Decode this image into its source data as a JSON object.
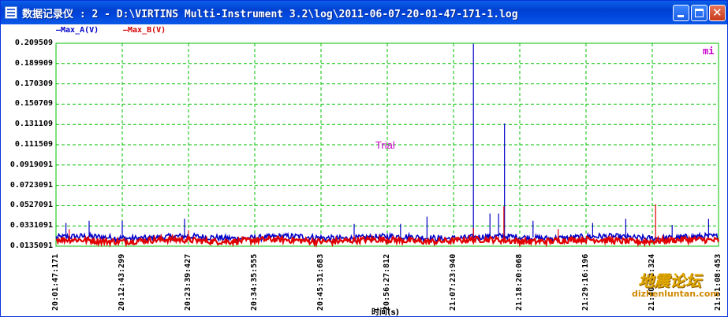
{
  "window": {
    "title": "数据记录仪 : 2 - D:\\VIRTINS Multi-Instrument 3.2\\log\\2011-06-07-20-01-47-171-1.log",
    "icon": "data-logger-icon",
    "buttons": {
      "minimize": "minimize-icon",
      "maximize": "maximize-icon",
      "close": "close-icon"
    },
    "colors": {
      "titlebar": "#0046dd",
      "grid": "#00c000",
      "series_a": "#0000c8",
      "series_b": "#e00000"
    }
  },
  "legend": {
    "a": "—Max_A(V)",
    "b": "—Max_B(V)"
  },
  "annotations": {
    "trial": "Trial",
    "mi": "mi"
  },
  "watermark": {
    "text": "地震论坛",
    "url": "dizhenluntan.com"
  },
  "chart_data": {
    "type": "line",
    "title": "",
    "xlabel": "时间(s)",
    "ylabel": "",
    "ylim": [
      0.0135091,
      0.209509
    ],
    "grid": true,
    "legend_position": "top-left",
    "yticks": [
      "0.209509",
      "0.189909",
      "0.170309",
      "0.150709",
      "0.131109",
      "0.111509",
      "0.0919091",
      "0.0723091",
      "0.0527091",
      "0.0331091",
      "0.0135091"
    ],
    "xticks": [
      "20:01:47:171",
      "20:12:43:299",
      "20:23:39:427",
      "20:34:35:555",
      "20:45:31:683",
      "20:56:27:812",
      "21:07:23:940",
      "21:18:20:068",
      "21:29:16:196",
      "21:40:12:324",
      "21:51:08:453"
    ],
    "series": [
      {
        "name": "Max_A(V)",
        "color": "#0000c8",
        "baseline": 0.022,
        "spikes": [
          {
            "t": 0.015,
            "v": 0.036
          },
          {
            "t": 0.05,
            "v": 0.038
          },
          {
            "t": 0.1,
            "v": 0.038
          },
          {
            "t": 0.194,
            "v": 0.04
          },
          {
            "t": 0.45,
            "v": 0.035
          },
          {
            "t": 0.52,
            "v": 0.035
          },
          {
            "t": 0.56,
            "v": 0.042
          },
          {
            "t": 0.63,
            "v": 0.209
          },
          {
            "t": 0.655,
            "v": 0.045
          },
          {
            "t": 0.668,
            "v": 0.045
          },
          {
            "t": 0.677,
            "v": 0.132
          },
          {
            "t": 0.72,
            "v": 0.038
          },
          {
            "t": 0.81,
            "v": 0.036
          },
          {
            "t": 0.86,
            "v": 0.04
          },
          {
            "t": 0.93,
            "v": 0.034
          },
          {
            "t": 0.985,
            "v": 0.04
          }
        ]
      },
      {
        "name": "Max_B(V)",
        "color": "#e00000",
        "baseline": 0.019,
        "spikes": [
          {
            "t": 0.02,
            "v": 0.03
          },
          {
            "t": 0.2,
            "v": 0.029
          },
          {
            "t": 0.63,
            "v": 0.031
          },
          {
            "t": 0.676,
            "v": 0.052
          },
          {
            "t": 0.758,
            "v": 0.03
          },
          {
            "t": 0.905,
            "v": 0.054
          }
        ]
      }
    ]
  }
}
